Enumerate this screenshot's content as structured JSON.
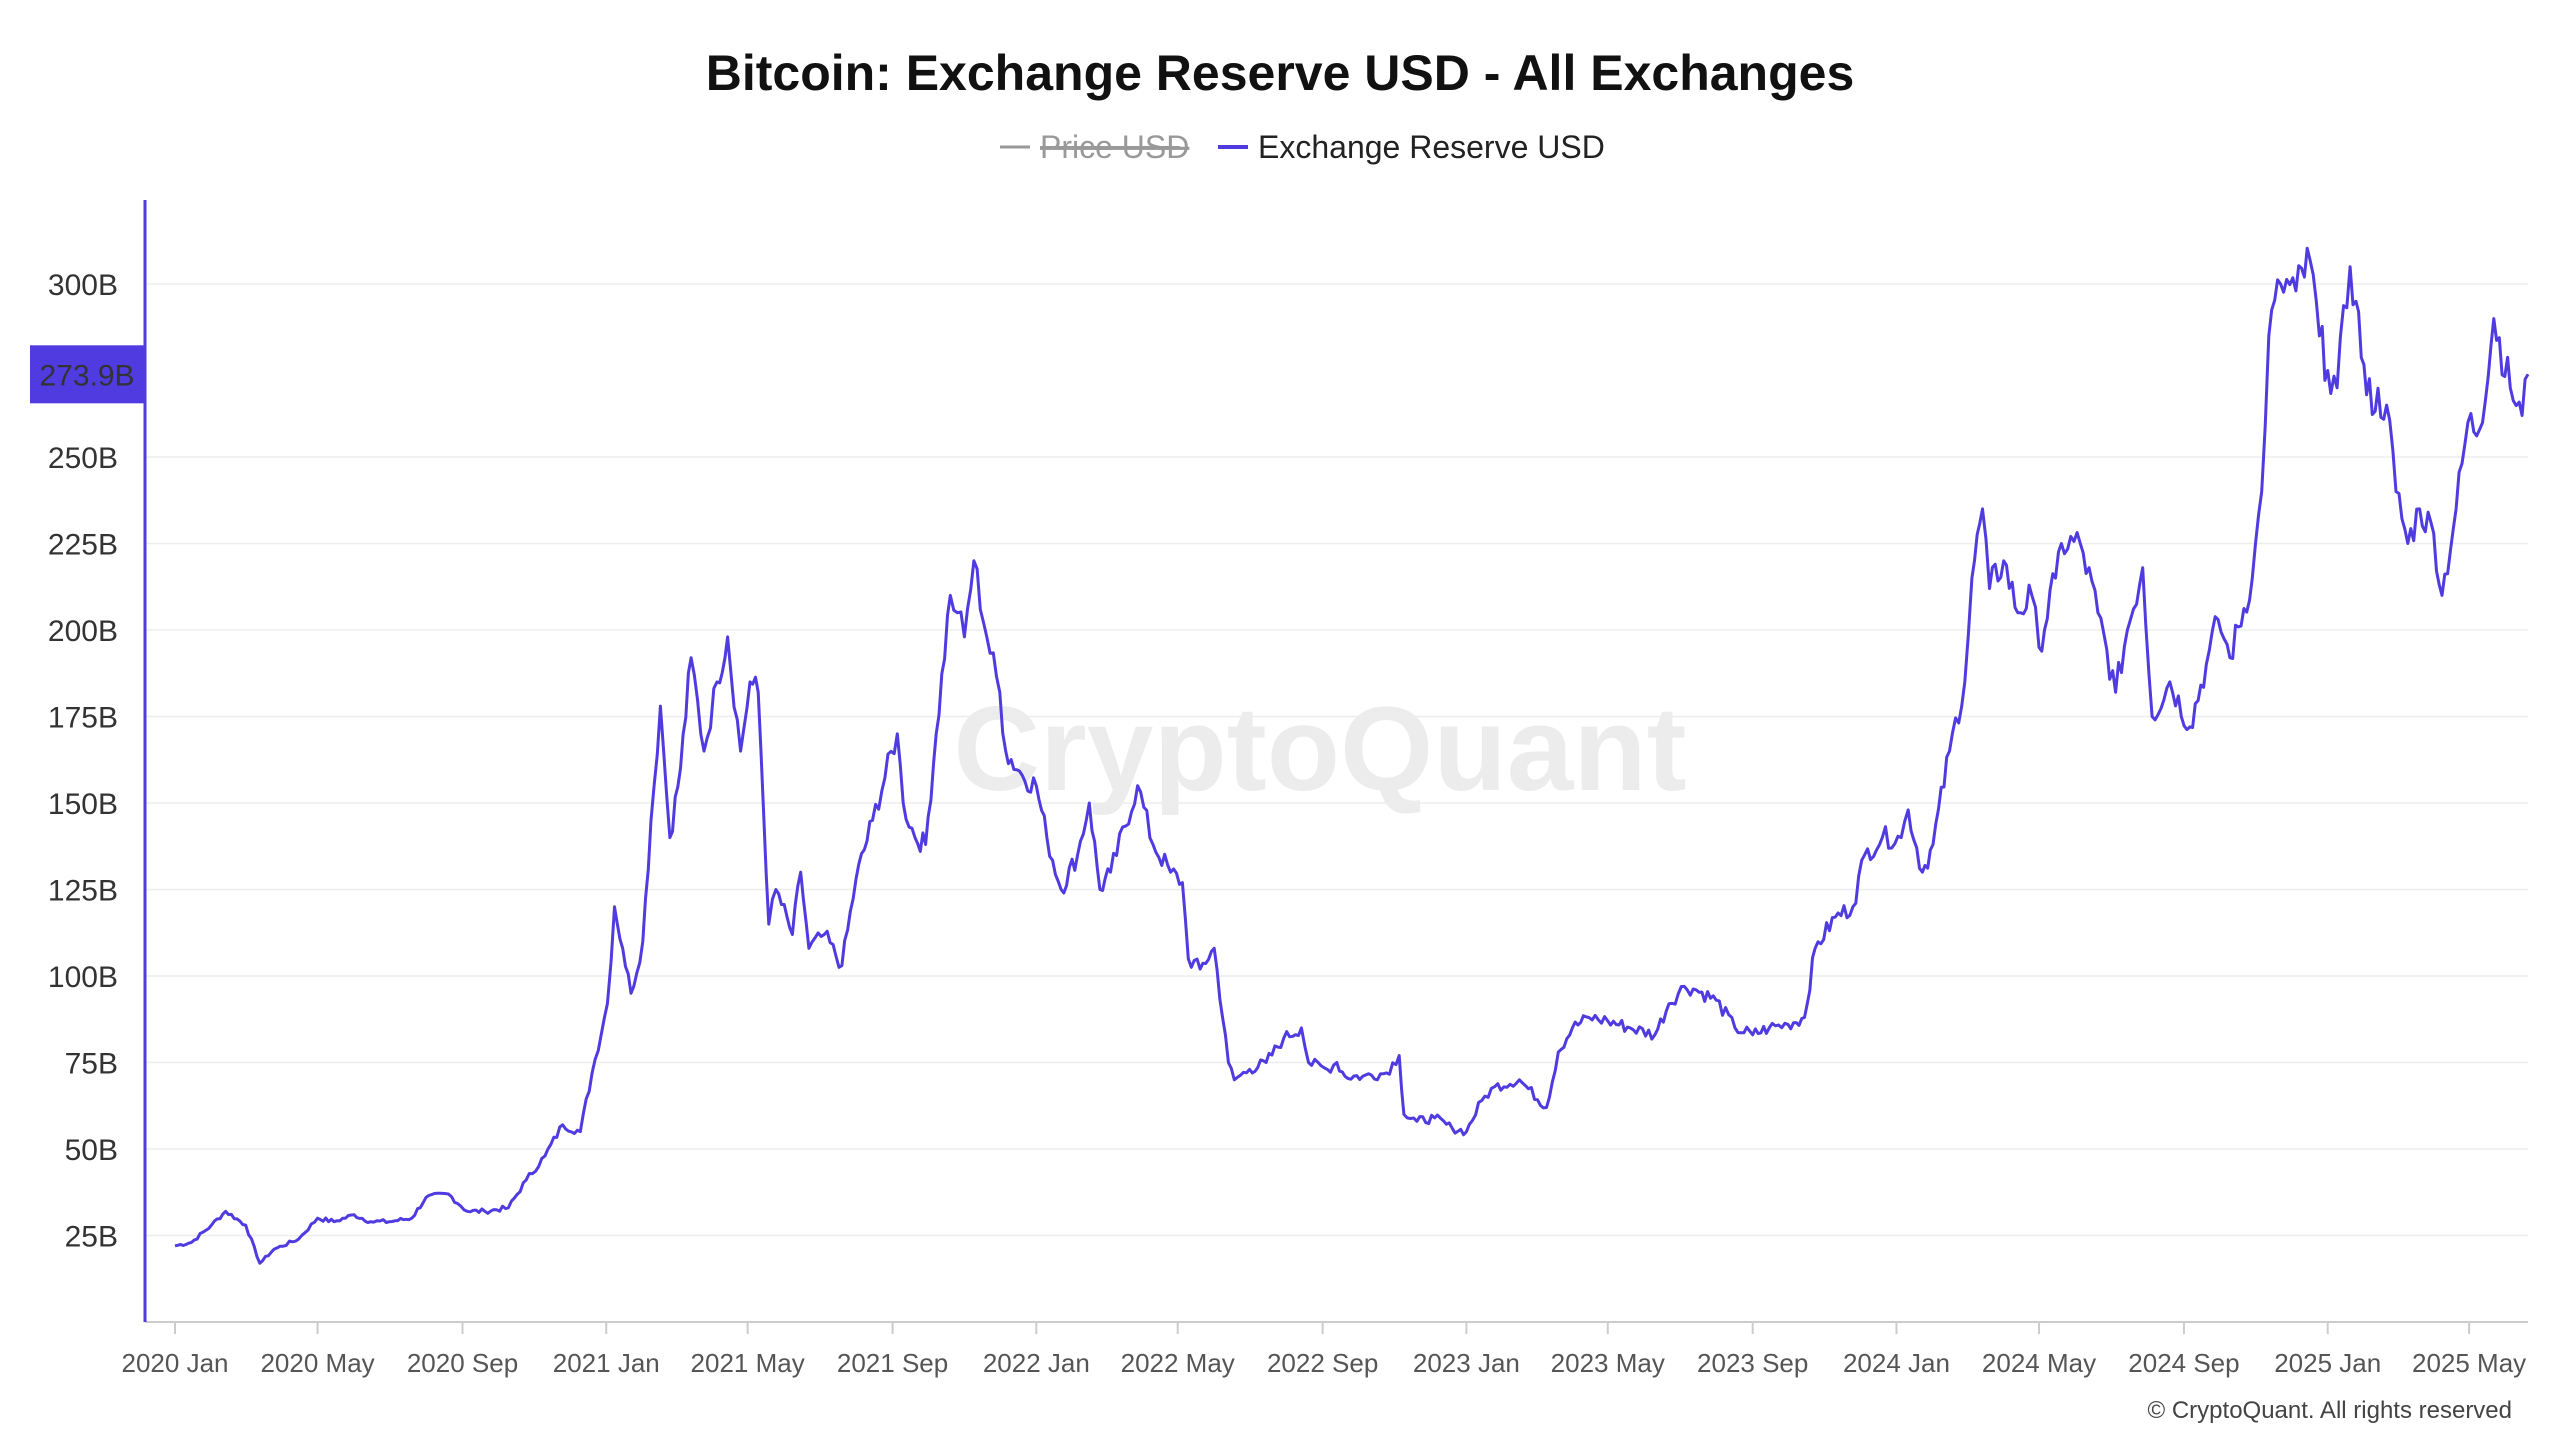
{
  "chart_data": {
    "type": "line",
    "title": "Bitcoin: Exchange Reserve USD - All Exchanges",
    "legend": {
      "placement": "top-center",
      "entries": [
        {
          "name": "Price USD",
          "color": "#999999",
          "hidden": true
        },
        {
          "name": "Exchange Reserve USD",
          "color": "#4F3BE0",
          "hidden": false
        }
      ]
    },
    "y_ticks": [
      "300B",
      "250B",
      "225B",
      "200B",
      "175B",
      "150B",
      "125B",
      "100B",
      "75B",
      "50B",
      "25B"
    ],
    "y_tick_values": [
      300,
      250,
      225,
      200,
      175,
      150,
      125,
      100,
      75,
      50,
      25
    ],
    "x_ticks": [
      "2020 Jan",
      "2020 May",
      "2020 Sep",
      "2021 Jan",
      "2021 May",
      "2021 Sep",
      "2022 Jan",
      "2022 May",
      "2022 Sep",
      "2023 Jan",
      "2023 May",
      "2023 Sep",
      "2024 Jan",
      "2024 May",
      "2024 Sep",
      "2025 Jan",
      "2025 May"
    ],
    "ylim": [
      0,
      320
    ],
    "y_unit": "B USD",
    "grid": true,
    "current_value": 273.9,
    "current_value_label": "273.9B",
    "series": [
      {
        "name": "Exchange Reserve USD",
        "color": "#4F3BE0",
        "points": [
          [
            "2020-01-01",
            22
          ],
          [
            "2020-01-15",
            23
          ],
          [
            "2020-02-01",
            28
          ],
          [
            "2020-02-13",
            32
          ],
          [
            "2020-03-01",
            28
          ],
          [
            "2020-03-13",
            17
          ],
          [
            "2020-03-25",
            21
          ],
          [
            "2020-04-15",
            24
          ],
          [
            "2020-05-01",
            30
          ],
          [
            "2020-05-15",
            29
          ],
          [
            "2020-06-01",
            31
          ],
          [
            "2020-06-15",
            29
          ],
          [
            "2020-07-01",
            29
          ],
          [
            "2020-07-20",
            30
          ],
          [
            "2020-08-01",
            36
          ],
          [
            "2020-08-20",
            37
          ],
          [
            "2020-09-05",
            32
          ],
          [
            "2020-09-20",
            32
          ],
          [
            "2020-10-10",
            33
          ],
          [
            "2020-10-25",
            41
          ],
          [
            "2020-11-10",
            48
          ],
          [
            "2020-11-25",
            57
          ],
          [
            "2020-12-10",
            55
          ],
          [
            "2020-12-20",
            72
          ],
          [
            "2021-01-02",
            92
          ],
          [
            "2021-01-08",
            120
          ],
          [
            "2021-01-15",
            108
          ],
          [
            "2021-01-22",
            95
          ],
          [
            "2021-02-01",
            110
          ],
          [
            "2021-02-08",
            145
          ],
          [
            "2021-02-16",
            178
          ],
          [
            "2021-02-24",
            140
          ],
          [
            "2021-03-05",
            160
          ],
          [
            "2021-03-14",
            192
          ],
          [
            "2021-03-25",
            165
          ],
          [
            "2021-04-05",
            185
          ],
          [
            "2021-04-14",
            198
          ],
          [
            "2021-04-25",
            165
          ],
          [
            "2021-05-03",
            185
          ],
          [
            "2021-05-10",
            182
          ],
          [
            "2021-05-19",
            115
          ],
          [
            "2021-05-25",
            125
          ],
          [
            "2021-06-08",
            112
          ],
          [
            "2021-06-15",
            130
          ],
          [
            "2021-06-22",
            108
          ],
          [
            "2021-07-05",
            112
          ],
          [
            "2021-07-20",
            103
          ],
          [
            "2021-08-01",
            128
          ],
          [
            "2021-08-15",
            145
          ],
          [
            "2021-09-05",
            170
          ],
          [
            "2021-09-10",
            150
          ],
          [
            "2021-09-20",
            140
          ],
          [
            "2021-09-29",
            138
          ],
          [
            "2021-10-08",
            170
          ],
          [
            "2021-10-20",
            210
          ],
          [
            "2021-10-26",
            205
          ],
          [
            "2021-11-01",
            198
          ],
          [
            "2021-11-09",
            220
          ],
          [
            "2021-11-20",
            198
          ],
          [
            "2021-12-01",
            182
          ],
          [
            "2021-12-06",
            165
          ],
          [
            "2021-12-20",
            158
          ],
          [
            "2022-01-01",
            155
          ],
          [
            "2022-01-10",
            140
          ],
          [
            "2022-01-22",
            125
          ],
          [
            "2022-02-05",
            135
          ],
          [
            "2022-02-15",
            150
          ],
          [
            "2022-02-24",
            125
          ],
          [
            "2022-03-05",
            130
          ],
          [
            "2022-03-28",
            155
          ],
          [
            "2022-04-10",
            138
          ],
          [
            "2022-04-25",
            130
          ],
          [
            "2022-05-05",
            127
          ],
          [
            "2022-05-10",
            105
          ],
          [
            "2022-05-20",
            102
          ],
          [
            "2022-06-01",
            108
          ],
          [
            "2022-06-13",
            75
          ],
          [
            "2022-06-18",
            70
          ],
          [
            "2022-07-01",
            73
          ],
          [
            "2022-07-15",
            75
          ],
          [
            "2022-07-30",
            82
          ],
          [
            "2022-08-14",
            85
          ],
          [
            "2022-08-20",
            75
          ],
          [
            "2022-09-05",
            73
          ],
          [
            "2022-09-13",
            75
          ],
          [
            "2022-09-20",
            71
          ],
          [
            "2022-10-05",
            71
          ],
          [
            "2022-10-25",
            72
          ],
          [
            "2022-11-05",
            77
          ],
          [
            "2022-11-09",
            60
          ],
          [
            "2022-11-20",
            58
          ],
          [
            "2022-12-05",
            59
          ],
          [
            "2022-12-20",
            56
          ],
          [
            "2023-01-01",
            55
          ],
          [
            "2023-01-14",
            64
          ],
          [
            "2023-01-25",
            68
          ],
          [
            "2023-02-15",
            70
          ],
          [
            "2023-03-10",
            62
          ],
          [
            "2023-03-20",
            78
          ],
          [
            "2023-04-01",
            85
          ],
          [
            "2023-04-15",
            88
          ],
          [
            "2023-05-01",
            87
          ],
          [
            "2023-05-20",
            85
          ],
          [
            "2023-06-10",
            83
          ],
          [
            "2023-06-22",
            92
          ],
          [
            "2023-07-05",
            97
          ],
          [
            "2023-07-15",
            96
          ],
          [
            "2023-08-01",
            93
          ],
          [
            "2023-08-17",
            85
          ],
          [
            "2023-09-01",
            83
          ],
          [
            "2023-09-15",
            85
          ],
          [
            "2023-10-01",
            86
          ],
          [
            "2023-10-15",
            88
          ],
          [
            "2023-10-24",
            108
          ],
          [
            "2023-11-10",
            117
          ],
          [
            "2023-11-25",
            120
          ],
          [
            "2023-12-05",
            135
          ],
          [
            "2023-12-20",
            140
          ],
          [
            "2024-01-05",
            140
          ],
          [
            "2024-01-11",
            148
          ],
          [
            "2024-01-23",
            130
          ],
          [
            "2024-02-01",
            138
          ],
          [
            "2024-02-15",
            165
          ],
          [
            "2024-02-28",
            185
          ],
          [
            "2024-03-05",
            215
          ],
          [
            "2024-03-14",
            235
          ],
          [
            "2024-03-20",
            212
          ],
          [
            "2024-04-01",
            220
          ],
          [
            "2024-04-13",
            205
          ],
          [
            "2024-04-25",
            210
          ],
          [
            "2024-05-01",
            195
          ],
          [
            "2024-05-15",
            215
          ],
          [
            "2024-05-20",
            225
          ],
          [
            "2024-06-05",
            225
          ],
          [
            "2024-06-20",
            205
          ],
          [
            "2024-07-05",
            182
          ],
          [
            "2024-07-15",
            200
          ],
          [
            "2024-07-28",
            218
          ],
          [
            "2024-08-05",
            175
          ],
          [
            "2024-08-20",
            185
          ],
          [
            "2024-09-06",
            172
          ],
          [
            "2024-09-20",
            190
          ],
          [
            "2024-09-30",
            203
          ],
          [
            "2024-10-10",
            192
          ],
          [
            "2024-10-29",
            215
          ],
          [
            "2024-11-06",
            240
          ],
          [
            "2024-11-12",
            285
          ],
          [
            "2024-11-22",
            300
          ],
          [
            "2024-12-05",
            298
          ],
          [
            "2024-12-17",
            307
          ],
          [
            "2024-12-25",
            285
          ],
          [
            "2025-01-01",
            275
          ],
          [
            "2025-01-09",
            270
          ],
          [
            "2025-01-20",
            305
          ],
          [
            "2025-01-25",
            295
          ],
          [
            "2025-02-03",
            268
          ],
          [
            "2025-02-20",
            265
          ],
          [
            "2025-02-28",
            240
          ],
          [
            "2025-03-10",
            225
          ],
          [
            "2025-03-20",
            235
          ],
          [
            "2025-04-01",
            228
          ],
          [
            "2025-04-08",
            210
          ],
          [
            "2025-04-20",
            235
          ],
          [
            "2025-04-30",
            260
          ],
          [
            "2025-05-10",
            258
          ],
          [
            "2025-05-22",
            290
          ],
          [
            "2025-06-05",
            270
          ],
          [
            "2025-06-15",
            262
          ],
          [
            "2025-06-20",
            273.9
          ]
        ]
      }
    ]
  },
  "watermark": "CryptoQuant",
  "copyright": "© CryptoQuant. All rights reserved"
}
